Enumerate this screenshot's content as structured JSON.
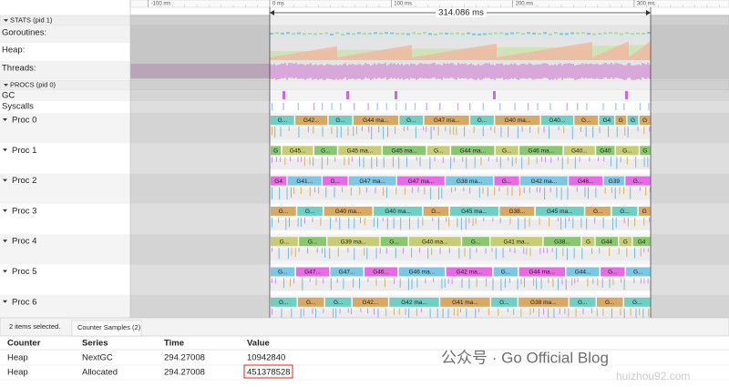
{
  "ruler": {
    "ticks": [
      "-100 ms",
      "0 ms",
      "100 ms",
      "200 ms",
      "300 ms"
    ],
    "range": "314.086 ms"
  },
  "stats": {
    "title": "STATS (pid 1)",
    "rows": [
      "Goroutines:",
      "Heap:",
      "Threads:"
    ]
  },
  "procs": {
    "title": "PROCS (pid 0)",
    "rows": [
      "GC",
      "Syscalls"
    ],
    "procs": [
      {
        "name": "Proc 0",
        "slices": [
          "G...",
          "G42...",
          "G...",
          "G44 ma...",
          "G...",
          "G47 ma...",
          "G...",
          "G40 ma...",
          "G40...",
          "G...",
          "G4",
          "G",
          "G",
          "G"
        ]
      },
      {
        "name": "Proc 1",
        "slices": [
          "G",
          "G45...",
          "G...",
          "G45 ma...",
          "G45 ma...",
          "G...",
          "G44 ma...",
          "G...",
          "G46 ma...",
          "G40...",
          "G40",
          "G...",
          "G"
        ]
      },
      {
        "name": "Proc 2",
        "slices": [
          "G4",
          "G41...",
          "G...",
          "G47 ma...",
          "G47 ma...",
          "G38 ma...",
          "G...",
          "G42 ma...",
          "G46...",
          "G39",
          "G..."
        ]
      },
      {
        "name": "Proc 3",
        "slices": [
          "G...",
          "G...",
          "G40 ma...",
          "G40 ma...",
          "G...",
          "G45 ma...",
          "G38...",
          "G45 ma...",
          "G...",
          "G...",
          "G"
        ]
      },
      {
        "name": "Proc 4",
        "slices": [
          "G...",
          "G...",
          "G39 ma...",
          "G...",
          "G40 ma...",
          "G...",
          "G41 ma...",
          "G38...",
          "G",
          "G44",
          "G",
          "G4"
        ]
      },
      {
        "name": "Proc 5",
        "slices": [
          "G...",
          "G47...",
          "G47...",
          "G46...",
          "G46 ma...",
          "G42 ma...",
          "G...",
          "G44 ma...",
          "G44...",
          "G...",
          "G..."
        ]
      },
      {
        "name": "Proc 6",
        "slices": [
          "G...",
          "G...",
          "G...",
          "G42...",
          "G42 ma...",
          "G41 ma...",
          "G...",
          "G38 ma...",
          "G...",
          "G...",
          "G..."
        ]
      }
    ]
  },
  "panel": {
    "selection": "2 items selected.",
    "tab": "Counter Samples (2)",
    "columns": [
      "Counter",
      "Series",
      "Time",
      "Value"
    ],
    "rows": [
      [
        "Heap",
        "NextGC",
        "294.27008",
        "10942840"
      ],
      [
        "Heap",
        "Allocated",
        "294.27008",
        "451378528"
      ]
    ]
  },
  "watermark": {
    "line1": "公众号 · Go Official Blog",
    "line2": "huizhou92.com"
  }
}
